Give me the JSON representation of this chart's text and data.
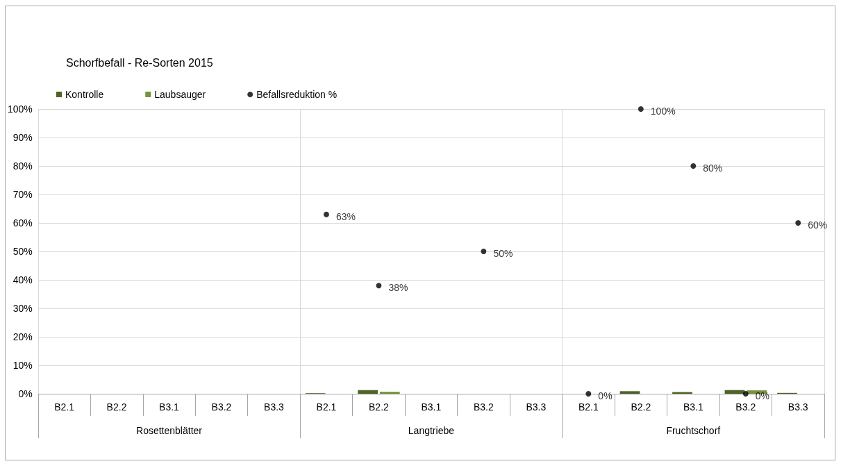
{
  "chart_data": {
    "type": "bar",
    "title": "Schorfbefall - Re-Sorten 2015",
    "categories": [
      "B2.1",
      "B2.2",
      "B3.1",
      "B3.2",
      "B3.3",
      "B2.1",
      "B2.2",
      "B3.1",
      "B3.2",
      "B3.3",
      "B2.1",
      "B2.2",
      "B3.1",
      "B3.2",
      "B3.3"
    ],
    "annotations": [
      "Rosettenblätter",
      "Langtriebe",
      "Fruchtschorf"
    ],
    "series": [
      {
        "name": "Kontrolle",
        "color": "#4f6228",
        "values": [
          0,
          0,
          0,
          0,
          0,
          0.2,
          1.3,
          0,
          0,
          0,
          0,
          0.9,
          0.6,
          1.3,
          0.3
        ]
      },
      {
        "name": "Laubsauger",
        "color": "#76923c",
        "values": [
          0,
          0,
          0,
          0,
          0,
          0,
          0.7,
          0,
          0,
          0,
          0,
          0,
          0,
          1.2,
          0
        ]
      },
      {
        "name": "Befallsreduktion %",
        "type": "scatter",
        "color": "#000000",
        "values": [
          null,
          null,
          null,
          null,
          null,
          63,
          38,
          null,
          50,
          null,
          0,
          100,
          80,
          0,
          60
        ],
        "value_labels": [
          null,
          null,
          null,
          null,
          null,
          "63%",
          "38%",
          null,
          "50%",
          null,
          "0%",
          "100%",
          "80%",
          "0%",
          "60%"
        ]
      }
    ],
    "ylim": [
      0,
      100
    ],
    "yticks": [
      {
        "value": 0,
        "label": "0%"
      },
      {
        "value": 10,
        "label": "10%"
      },
      {
        "value": 20,
        "label": "20%"
      },
      {
        "value": 30,
        "label": "30%"
      },
      {
        "value": 40,
        "label": "40%"
      },
      {
        "value": 50,
        "label": "50%"
      },
      {
        "value": 60,
        "label": "60%"
      },
      {
        "value": 70,
        "label": "70%"
      },
      {
        "value": 80,
        "label": "80%"
      },
      {
        "value": 90,
        "label": "90%"
      },
      {
        "value": 100,
        "label": "100%"
      }
    ],
    "grid": "y",
    "legend": "top left",
    "marker": "circle"
  }
}
